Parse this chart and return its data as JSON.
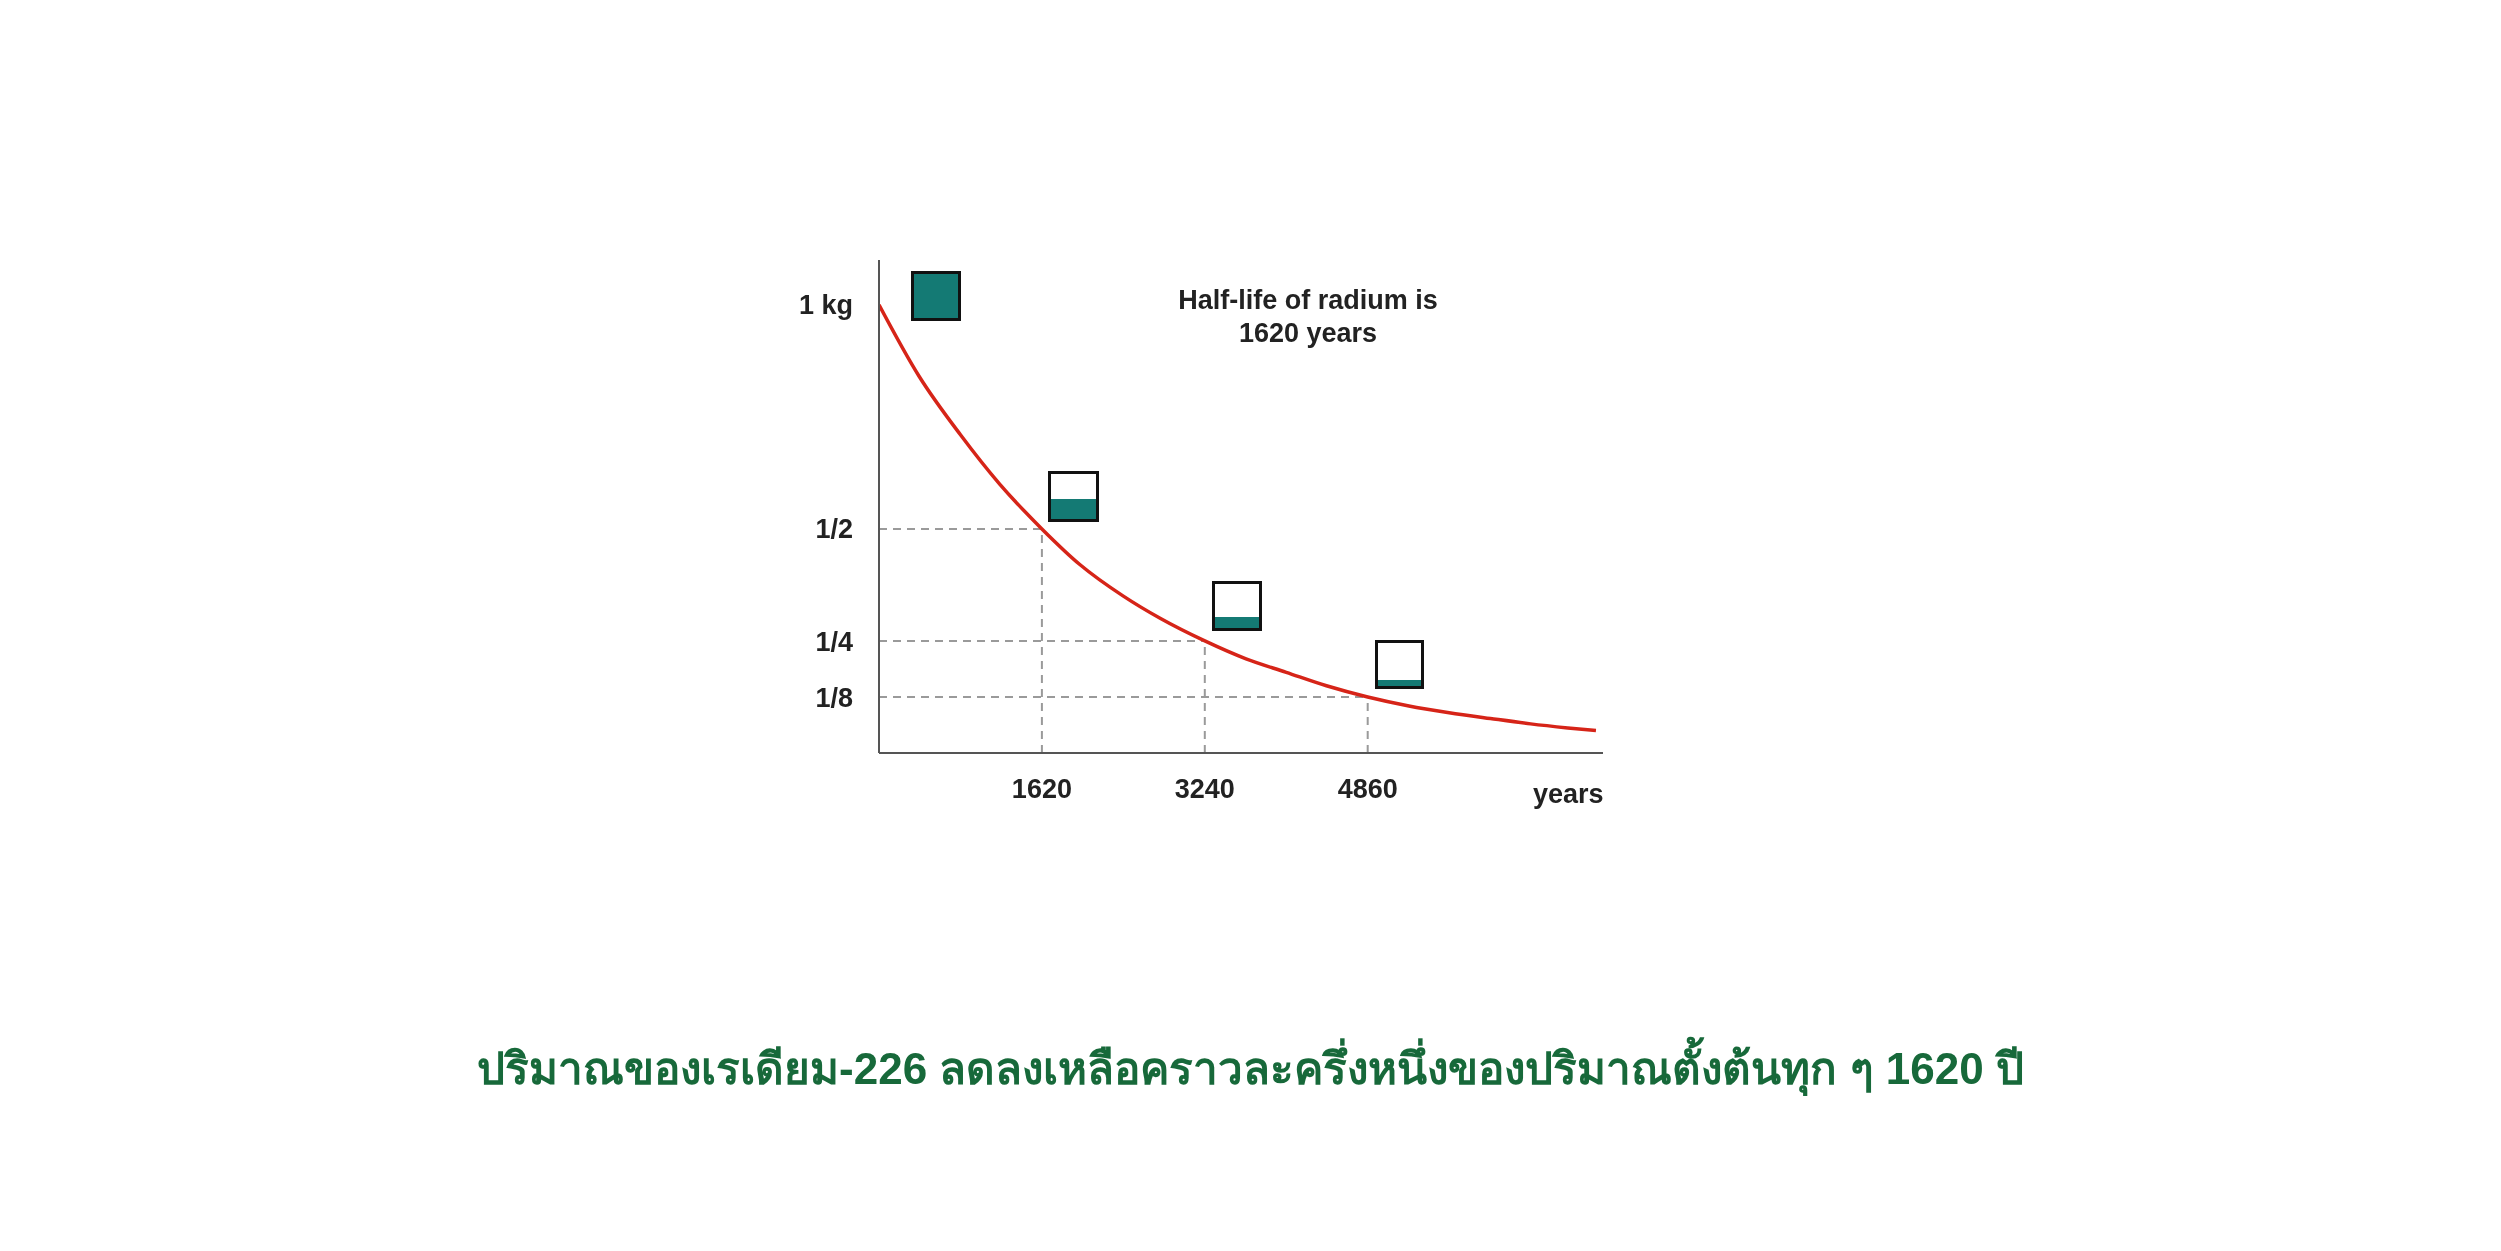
{
  "chart_data": {
    "type": "line",
    "xlabel": "years",
    "line_style": "solid",
    "marker": "none",
    "annotations": [
      "Half-life of radium is 1620 years",
      "ปริมาณของเรเดียม-226 ลดลงเหลือคราวละครึ่งหนึ่งของปริมาณตั้งต้นทุก ๆ 1620 ปี"
    ],
    "x": [
      0,
      400,
      810,
      1200,
      1620,
      2000,
      2430,
      2800,
      3240,
      3650,
      4050,
      4450,
      4860,
      5270,
      5670,
      6080,
      6480,
      6850,
      7130
    ],
    "series": [
      {
        "color": "#d62418",
        "values": [
          1,
          0.84,
          0.71,
          0.6,
          0.5,
          0.42,
          0.35,
          0.3,
          0.25,
          0.21,
          0.18,
          0.15,
          0.125,
          0.105,
          0.09,
          0.077,
          0.065,
          0.056,
          0.05
        ]
      }
    ],
    "xlim": [
      0,
      7200
    ],
    "xticks": [
      1620,
      3240,
      4860
    ],
    "ylim": [
      0,
      1.1
    ],
    "yticks": [
      {
        "value": 0.125,
        "label": "1/8"
      },
      {
        "value": 0.25,
        "label": "1/4"
      },
      {
        "value": 0.5,
        "label": "1/2"
      },
      {
        "value": 1,
        "label": "1 kg"
      }
    ],
    "ref_lines": [
      {
        "axis": "y",
        "value": 0.5,
        "color": "#9a9a9a",
        "line_style": "dashed"
      },
      {
        "axis": "y",
        "value": 0.25,
        "color": "#9a9a9a",
        "line_style": "dashed"
      },
      {
        "axis": "y",
        "value": 0.125,
        "color": "#9a9a9a",
        "line_style": "dashed"
      },
      {
        "axis": "x",
        "value": 1620,
        "color": "#9a9a9a",
        "line_style": "dashed"
      },
      {
        "axis": "x",
        "value": 3240,
        "color": "#9a9a9a",
        "line_style": "dashed"
      },
      {
        "axis": "x",
        "value": 4860,
        "color": "#9a9a9a",
        "line_style": "dashed"
      }
    ]
  }
}
